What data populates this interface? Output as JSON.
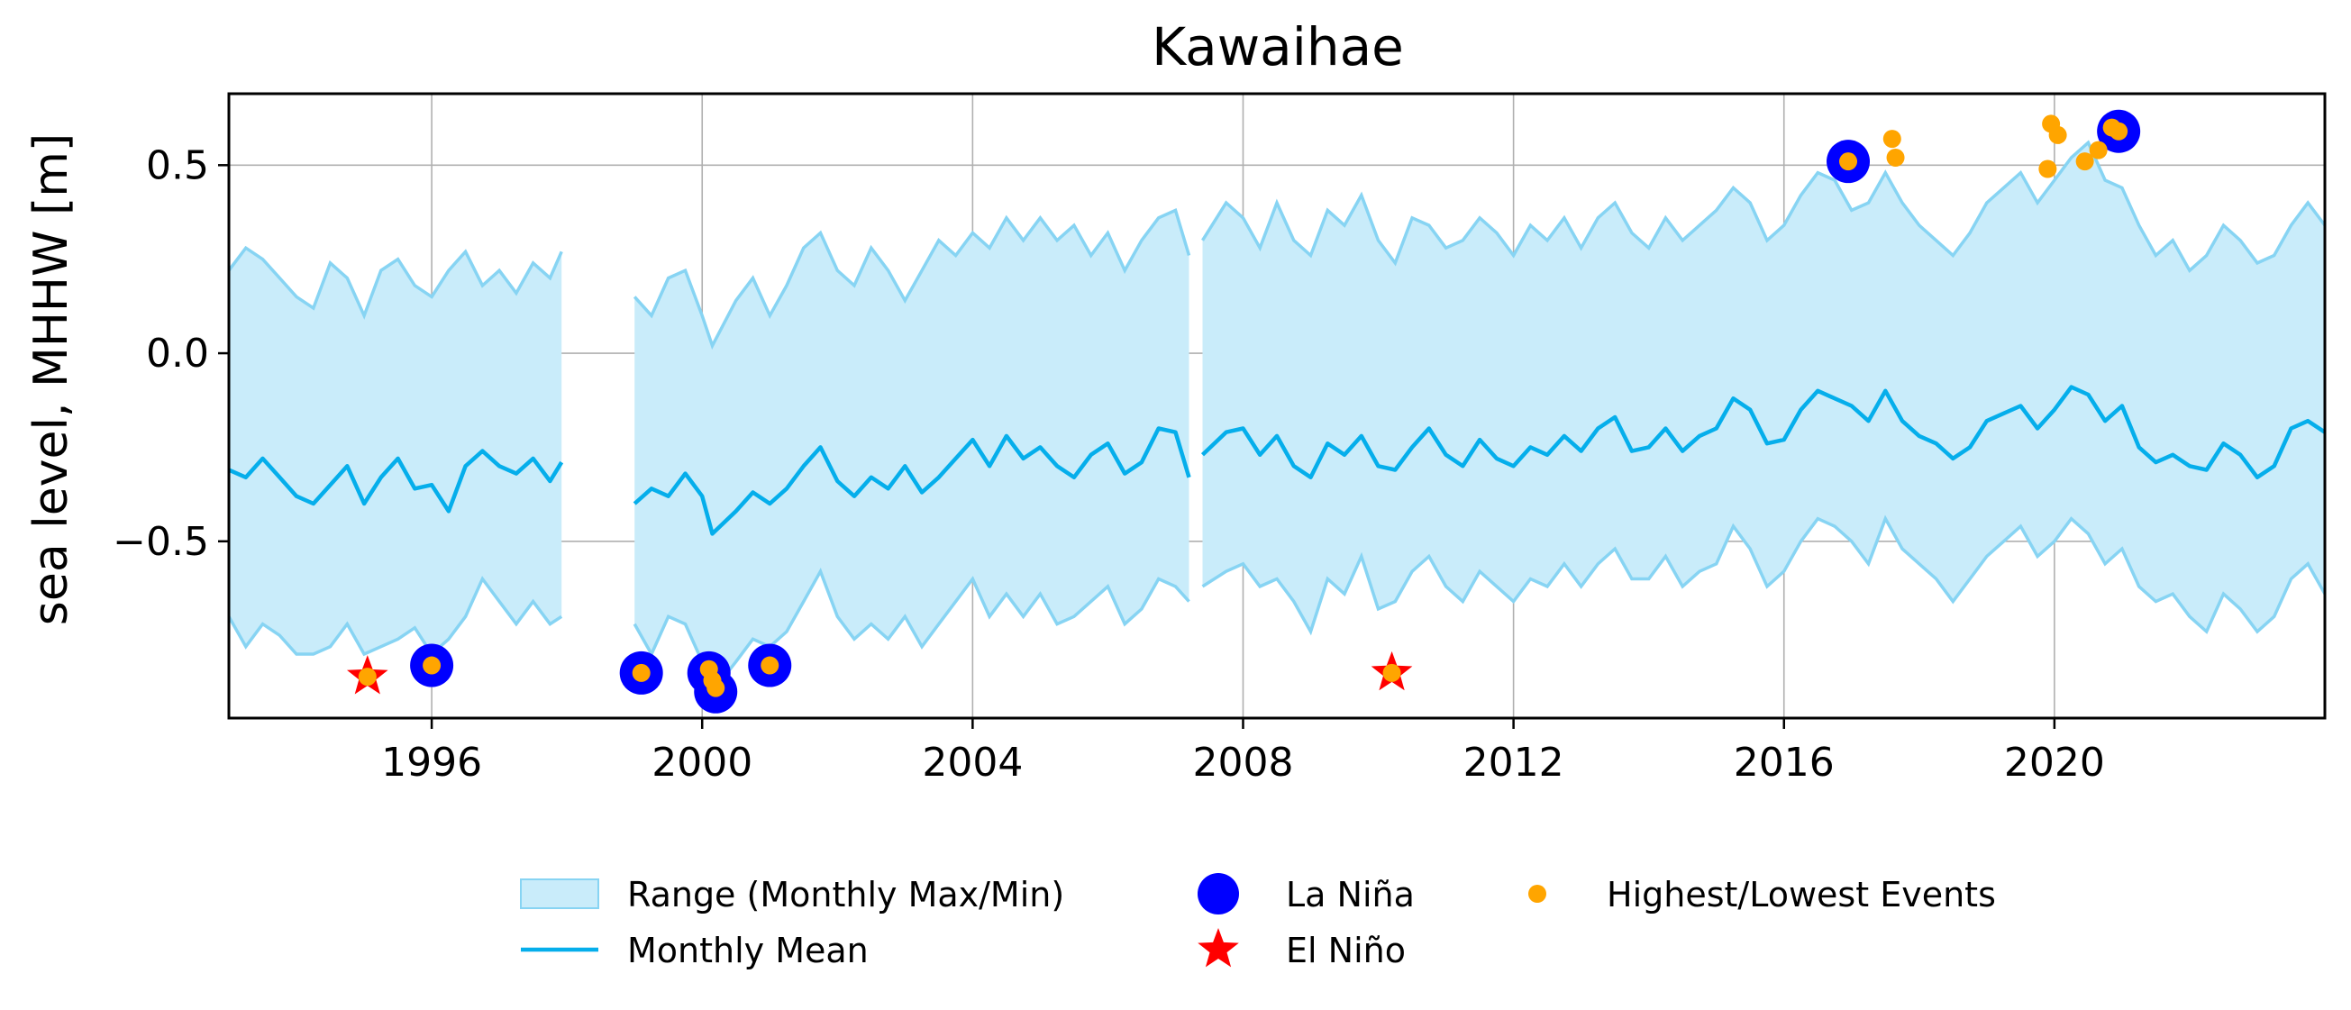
{
  "chart_data": {
    "type": "line",
    "title": "Kawaihae",
    "xlabel": "",
    "ylabel": "sea level, MHHW [m]",
    "xlim": [
      1993.0,
      2024.0
    ],
    "ylim": [
      -0.97,
      0.69
    ],
    "xticks": [
      1996,
      2000,
      2004,
      2008,
      2012,
      2016,
      2020
    ],
    "xtick_labels": [
      "1996",
      "2000",
      "2004",
      "2008",
      "2012",
      "2016",
      "2020"
    ],
    "yticks": [
      0.5,
      0.0,
      -0.5
    ],
    "ytick_labels": [
      "0.5",
      "0.0",
      "−0.5"
    ],
    "grid": true,
    "legend_position": "bottom-center",
    "colors": {
      "range_fill": "#c9ecfa",
      "range_edge": "#87d4f3",
      "mean_line": "#05aeeb",
      "la_nina": "#0000ff",
      "el_nino": "#ff0000",
      "events": "#ffa500"
    },
    "legend": [
      {
        "label": "Range (Monthly Max/Min)",
        "marker": "patch"
      },
      {
        "label": "Monthly Mean",
        "marker": "line"
      },
      {
        "label": "La Niña",
        "marker": "circle"
      },
      {
        "label": "El Niño",
        "marker": "star"
      },
      {
        "label": "Highest/Lowest Events",
        "marker": "dot"
      }
    ],
    "series": [
      {
        "name": "Monthly Mean",
        "segments": [
          {
            "x": [
              1993.0,
              1993.25,
              1993.5,
              1993.75,
              1994.0,
              1994.25,
              1994.5,
              1994.75,
              1995.0,
              1995.25,
              1995.5,
              1995.75,
              1996.0,
              1996.25,
              1996.5,
              1996.75,
              1997.0,
              1997.25,
              1997.5,
              1997.75,
              1997.92
            ],
            "y": [
              -0.31,
              -0.33,
              -0.28,
              -0.33,
              -0.38,
              -0.4,
              -0.35,
              -0.3,
              -0.4,
              -0.33,
              -0.28,
              -0.36,
              -0.35,
              -0.42,
              -0.3,
              -0.26,
              -0.3,
              -0.32,
              -0.28,
              -0.34,
              -0.29
            ]
          },
          {
            "x": [
              1999.0,
              1999.25,
              1999.5,
              1999.75,
              2000.0,
              2000.15,
              2000.5,
              2000.75,
              2001.0,
              2001.25,
              2001.5,
              2001.75,
              2002.0,
              2002.25,
              2002.5,
              2002.75,
              2003.0,
              2003.25,
              2003.5,
              2003.75,
              2004.0,
              2004.25,
              2004.5,
              2004.75,
              2005.0,
              2005.25,
              2005.5,
              2005.75,
              2006.0,
              2006.25,
              2006.5,
              2006.75,
              2007.0,
              2007.2
            ],
            "y": [
              -0.4,
              -0.36,
              -0.38,
              -0.32,
              -0.38,
              -0.48,
              -0.42,
              -0.37,
              -0.4,
              -0.36,
              -0.3,
              -0.25,
              -0.34,
              -0.38,
              -0.33,
              -0.36,
              -0.3,
              -0.37,
              -0.33,
              -0.28,
              -0.23,
              -0.3,
              -0.22,
              -0.28,
              -0.25,
              -0.3,
              -0.33,
              -0.27,
              -0.24,
              -0.32,
              -0.29,
              -0.2,
              -0.21,
              -0.33
            ]
          },
          {
            "x": [
              2007.4,
              2007.75,
              2008.0,
              2008.25,
              2008.5,
              2008.75,
              2009.0,
              2009.25,
              2009.5,
              2009.75,
              2010.0,
              2010.25,
              2010.5,
              2010.75,
              2011.0,
              2011.25,
              2011.5,
              2011.75,
              2012.0,
              2012.25,
              2012.5,
              2012.75,
              2013.0,
              2013.25,
              2013.5,
              2013.75,
              2014.0,
              2014.25,
              2014.5,
              2014.75,
              2015.0,
              2015.25,
              2015.5,
              2015.75,
              2016.0,
              2016.25,
              2016.5,
              2016.75,
              2017.0,
              2017.25,
              2017.5,
              2017.75,
              2018.0,
              2018.25,
              2018.5,
              2018.75,
              2019.0,
              2019.25,
              2019.5,
              2019.75,
              2020.0,
              2020.25,
              2020.5,
              2020.75,
              2021.0,
              2021.25,
              2021.5,
              2021.75,
              2022.0,
              2022.25,
              2022.5,
              2022.75,
              2023.0,
              2023.25,
              2023.5,
              2023.75,
              2024.0
            ],
            "y": [
              -0.27,
              -0.21,
              -0.2,
              -0.27,
              -0.22,
              -0.3,
              -0.33,
              -0.24,
              -0.27,
              -0.22,
              -0.3,
              -0.31,
              -0.25,
              -0.2,
              -0.27,
              -0.3,
              -0.23,
              -0.28,
              -0.3,
              -0.25,
              -0.27,
              -0.22,
              -0.26,
              -0.2,
              -0.17,
              -0.26,
              -0.25,
              -0.2,
              -0.26,
              -0.22,
              -0.2,
              -0.12,
              -0.15,
              -0.24,
              -0.23,
              -0.15,
              -0.1,
              -0.12,
              -0.14,
              -0.18,
              -0.1,
              -0.18,
              -0.22,
              -0.24,
              -0.28,
              -0.25,
              -0.18,
              -0.16,
              -0.14,
              -0.2,
              -0.15,
              -0.09,
              -0.11,
              -0.18,
              -0.14,
              -0.25,
              -0.29,
              -0.27,
              -0.3,
              -0.31,
              -0.24,
              -0.27,
              -0.33,
              -0.3,
              -0.2,
              -0.18,
              -0.21
            ]
          }
        ]
      },
      {
        "name": "Range (Monthly Max/Min)",
        "segments": [
          {
            "x": [
              1993.0,
              1993.25,
              1993.5,
              1993.75,
              1994.0,
              1994.25,
              1994.5,
              1994.75,
              1995.0,
              1995.25,
              1995.5,
              1995.75,
              1996.0,
              1996.25,
              1996.5,
              1996.75,
              1997.0,
              1997.25,
              1997.5,
              1997.75,
              1997.92
            ],
            "max": [
              0.22,
              0.28,
              0.25,
              0.2,
              0.15,
              0.12,
              0.24,
              0.2,
              0.1,
              0.22,
              0.25,
              0.18,
              0.15,
              0.22,
              0.27,
              0.18,
              0.22,
              0.16,
              0.24,
              0.2,
              0.27
            ],
            "min": [
              -0.7,
              -0.78,
              -0.72,
              -0.75,
              -0.8,
              -0.8,
              -0.78,
              -0.72,
              -0.8,
              -0.78,
              -0.76,
              -0.73,
              -0.8,
              -0.76,
              -0.7,
              -0.6,
              -0.66,
              -0.72,
              -0.66,
              -0.72,
              -0.7
            ]
          },
          {
            "x": [
              1999.0,
              1999.25,
              1999.5,
              1999.75,
              2000.0,
              2000.15,
              2000.5,
              2000.75,
              2001.0,
              2001.25,
              2001.5,
              2001.75,
              2002.0,
              2002.25,
              2002.5,
              2002.75,
              2003.0,
              2003.25,
              2003.5,
              2003.75,
              2004.0,
              2004.25,
              2004.5,
              2004.75,
              2005.0,
              2005.25,
              2005.5,
              2005.75,
              2006.0,
              2006.25,
              2006.5,
              2006.75,
              2007.0,
              2007.2
            ],
            "max": [
              0.15,
              0.1,
              0.2,
              0.22,
              0.1,
              0.02,
              0.14,
              0.2,
              0.1,
              0.18,
              0.28,
              0.32,
              0.22,
              0.18,
              0.28,
              0.22,
              0.14,
              0.22,
              0.3,
              0.26,
              0.32,
              0.28,
              0.36,
              0.3,
              0.36,
              0.3,
              0.34,
              0.26,
              0.32,
              0.22,
              0.3,
              0.36,
              0.38,
              0.26
            ],
            "min": [
              -0.72,
              -0.8,
              -0.7,
              -0.72,
              -0.82,
              -0.9,
              -0.82,
              -0.76,
              -0.78,
              -0.74,
              -0.66,
              -0.58,
              -0.7,
              -0.76,
              -0.72,
              -0.76,
              -0.7,
              -0.78,
              -0.72,
              -0.66,
              -0.6,
              -0.7,
              -0.64,
              -0.7,
              -0.64,
              -0.72,
              -0.7,
              -0.66,
              -0.62,
              -0.72,
              -0.68,
              -0.6,
              -0.62,
              -0.66
            ]
          },
          {
            "x": [
              2007.4,
              2007.75,
              2008.0,
              2008.25,
              2008.5,
              2008.75,
              2009.0,
              2009.25,
              2009.5,
              2009.75,
              2010.0,
              2010.25,
              2010.5,
              2010.75,
              2011.0,
              2011.25,
              2011.5,
              2011.75,
              2012.0,
              2012.25,
              2012.5,
              2012.75,
              2013.0,
              2013.25,
              2013.5,
              2013.75,
              2014.0,
              2014.25,
              2014.5,
              2014.75,
              2015.0,
              2015.25,
              2015.5,
              2015.75,
              2016.0,
              2016.25,
              2016.5,
              2016.75,
              2017.0,
              2017.25,
              2017.5,
              2017.75,
              2018.0,
              2018.25,
              2018.5,
              2018.75,
              2019.0,
              2019.25,
              2019.5,
              2019.75,
              2020.0,
              2020.25,
              2020.5,
              2020.75,
              2021.0,
              2021.25,
              2021.5,
              2021.75,
              2022.0,
              2022.25,
              2022.5,
              2022.75,
              2023.0,
              2023.25,
              2023.5,
              2023.75,
              2024.0
            ],
            "max": [
              0.3,
              0.4,
              0.36,
              0.28,
              0.4,
              0.3,
              0.26,
              0.38,
              0.34,
              0.42,
              0.3,
              0.24,
              0.36,
              0.34,
              0.28,
              0.3,
              0.36,
              0.32,
              0.26,
              0.34,
              0.3,
              0.36,
              0.28,
              0.36,
              0.4,
              0.32,
              0.28,
              0.36,
              0.3,
              0.34,
              0.38,
              0.44,
              0.4,
              0.3,
              0.34,
              0.42,
              0.48,
              0.46,
              0.38,
              0.4,
              0.48,
              0.4,
              0.34,
              0.3,
              0.26,
              0.32,
              0.4,
              0.44,
              0.48,
              0.4,
              0.46,
              0.52,
              0.56,
              0.46,
              0.44,
              0.34,
              0.26,
              0.3,
              0.22,
              0.26,
              0.34,
              0.3,
              0.24,
              0.26,
              0.34,
              0.4,
              0.34
            ],
            "min": [
              -0.62,
              -0.58,
              -0.56,
              -0.62,
              -0.6,
              -0.66,
              -0.74,
              -0.6,
              -0.64,
              -0.54,
              -0.68,
              -0.66,
              -0.58,
              -0.54,
              -0.62,
              -0.66,
              -0.58,
              -0.62,
              -0.66,
              -0.6,
              -0.62,
              -0.56,
              -0.62,
              -0.56,
              -0.52,
              -0.6,
              -0.6,
              -0.54,
              -0.62,
              -0.58,
              -0.56,
              -0.46,
              -0.52,
              -0.62,
              -0.58,
              -0.5,
              -0.44,
              -0.46,
              -0.5,
              -0.56,
              -0.44,
              -0.52,
              -0.56,
              -0.6,
              -0.66,
              -0.6,
              -0.54,
              -0.5,
              -0.46,
              -0.54,
              -0.5,
              -0.44,
              -0.48,
              -0.56,
              -0.52,
              -0.62,
              -0.66,
              -0.64,
              -0.7,
              -0.74,
              -0.64,
              -0.68,
              -0.74,
              -0.7,
              -0.6,
              -0.56,
              -0.64
            ]
          }
        ]
      },
      {
        "name": "La Niña",
        "x": [
          1996.0,
          1999.1,
          2000.1,
          2000.2,
          2001.0,
          2016.95,
          2020.95
        ],
        "y": [
          -0.83,
          -0.85,
          -0.85,
          -0.9,
          -0.83,
          0.51,
          0.59
        ]
      },
      {
        "name": "El Niño",
        "x": [
          1995.05,
          2010.2
        ],
        "y": [
          -0.86,
          -0.85
        ]
      },
      {
        "name": "Highest/Lowest Events",
        "x": [
          1995.05,
          1996.0,
          1999.1,
          2000.1,
          2000.15,
          2000.2,
          2001.0,
          2010.2,
          2016.95,
          2017.6,
          2017.65,
          2019.9,
          2019.95,
          2020.05,
          2020.45,
          2020.65,
          2020.85,
          2020.95
        ],
        "y": [
          -0.86,
          -0.83,
          -0.85,
          -0.84,
          -0.87,
          -0.89,
          -0.83,
          -0.85,
          0.51,
          0.57,
          0.52,
          0.49,
          0.61,
          0.58,
          0.51,
          0.54,
          0.6,
          0.59
        ]
      }
    ]
  }
}
